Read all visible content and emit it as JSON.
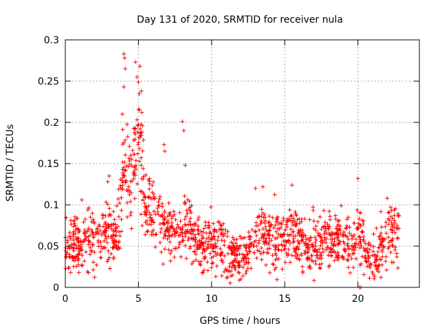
{
  "chart_data": {
    "type": "scatter",
    "title": "Day 131 of 2020, SRMTID for receiver nula",
    "xlabel": "GPS time / hours",
    "ylabel": "SRMTID / TECUs",
    "xlim": [
      0,
      24.2
    ],
    "ylim": [
      0,
      0.3
    ],
    "x_ticks": [
      0,
      5,
      10,
      15,
      20
    ],
    "x_tick_labels": [
      "0",
      "5",
      "10",
      "15",
      "20"
    ],
    "y_ticks": [
      0,
      0.05,
      0.1,
      0.15,
      0.2,
      0.25,
      0.3
    ],
    "y_tick_labels": [
      "0",
      "0.05",
      "0.1",
      "0.15",
      "0.2",
      "0.25",
      "0.3"
    ],
    "grid": true,
    "marker": "+",
    "color": "#ff0000",
    "series": [
      {
        "name": "SRMTID",
        "profile_x": [
          0,
          0.5,
          1,
          1.5,
          2,
          2.5,
          3,
          3.5,
          3.8,
          4,
          4.2,
          4.5,
          4.8,
          5,
          5.2,
          5.5,
          6,
          6.5,
          7,
          7.5,
          8,
          8.5,
          9,
          9.5,
          10,
          10.5,
          11,
          11.5,
          12,
          12.5,
          13,
          13.5,
          14,
          14.5,
          15,
          15.5,
          16,
          16.5,
          17,
          17.5,
          18,
          18.5,
          19,
          19.5,
          20,
          20.3,
          20.6,
          21,
          21.5,
          22,
          22.5,
          22.8
        ],
        "profile_y": [
          0.045,
          0.05,
          0.055,
          0.055,
          0.06,
          0.065,
          0.07,
          0.06,
          0.1,
          0.17,
          0.15,
          0.13,
          0.16,
          0.19,
          0.16,
          0.1,
          0.09,
          0.08,
          0.07,
          0.06,
          0.075,
          0.07,
          0.055,
          0.05,
          0.055,
          0.05,
          0.045,
          0.04,
          0.035,
          0.04,
          0.065,
          0.07,
          0.06,
          0.055,
          0.06,
          0.07,
          0.055,
          0.05,
          0.05,
          0.055,
          0.06,
          0.055,
          0.06,
          0.055,
          0.06,
          0.07,
          0.035,
          0.035,
          0.045,
          0.06,
          0.075,
          0.065
        ],
        "spread": 0.018,
        "extremes": [
          {
            "x": 4.0,
            "y": 0.283
          },
          {
            "x": 4.05,
            "y": 0.278
          },
          {
            "x": 4.1,
            "y": 0.265
          },
          {
            "x": 4.0,
            "y": 0.243
          },
          {
            "x": 4.8,
            "y": 0.273
          },
          {
            "x": 5.1,
            "y": 0.268
          },
          {
            "x": 4.9,
            "y": 0.255
          },
          {
            "x": 5.0,
            "y": 0.249
          },
          {
            "x": 5.2,
            "y": 0.238
          },
          {
            "x": 3.9,
            "y": 0.21
          },
          {
            "x": 5.05,
            "y": 0.215
          },
          {
            "x": 8.0,
            "y": 0.201
          },
          {
            "x": 8.1,
            "y": 0.19
          },
          {
            "x": 6.75,
            "y": 0.173
          },
          {
            "x": 6.8,
            "y": 0.165
          },
          {
            "x": 8.2,
            "y": 0.148
          },
          {
            "x": 3.0,
            "y": 0.135
          },
          {
            "x": 2.9,
            "y": 0.128
          },
          {
            "x": 20.0,
            "y": 0.132
          },
          {
            "x": 13.0,
            "y": 0.12
          },
          {
            "x": 13.5,
            "y": 0.122
          },
          {
            "x": 15.5,
            "y": 0.124
          },
          {
            "x": 22.0,
            "y": 0.108
          },
          {
            "x": 20.1,
            "y": 0.0
          },
          {
            "x": 20.2,
            "y": 0.0
          },
          {
            "x": 12.0,
            "y": 0.01
          }
        ]
      }
    ]
  }
}
